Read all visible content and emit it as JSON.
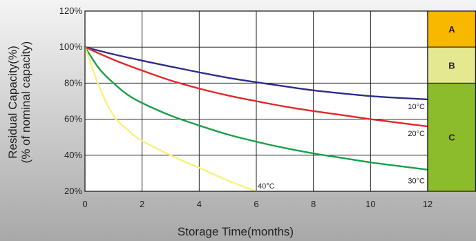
{
  "chart_data": {
    "type": "line",
    "title": "",
    "xlabel": "Storage Time(months)",
    "ylabel_lines": [
      "Residual Capacity(%)",
      "(% of nominal capacity)"
    ],
    "xlim": [
      0,
      12
    ],
    "ylim": [
      20,
      120
    ],
    "xticks": [
      0,
      2,
      4,
      6,
      8,
      10,
      12
    ],
    "yticks": [
      {
        "value": 20,
        "label": "20%"
      },
      {
        "value": 40,
        "label": "40%"
      },
      {
        "value": 60,
        "label": "60%"
      },
      {
        "value": 80,
        "label": "80%"
      },
      {
        "value": 100,
        "label": "100%"
      },
      {
        "value": 120,
        "label": "120%"
      }
    ],
    "grid": true,
    "zones": [
      {
        "label": "A",
        "from": 100,
        "to": 120,
        "color": "#f8b800"
      },
      {
        "label": "B",
        "from": 80,
        "to": 100,
        "color": "#e4e890"
      },
      {
        "label": "C",
        "from": 20,
        "to": 80,
        "color": "#8cbc2c"
      }
    ],
    "series": [
      {
        "name": "10°C",
        "color": "#2c2c8c",
        "x": [
          0,
          1,
          2,
          3,
          4,
          5,
          6,
          7,
          8,
          9,
          10,
          11,
          12
        ],
        "y": [
          100,
          96,
          92.5,
          89.2,
          86,
          83,
          80.5,
          78.2,
          76,
          74.3,
          72.8,
          71.8,
          71
        ]
      },
      {
        "name": "20°C",
        "color": "#e02828",
        "x": [
          0,
          1,
          2,
          3,
          4,
          5,
          6,
          7,
          8,
          9,
          10,
          11,
          12
        ],
        "y": [
          100,
          93,
          87,
          81.5,
          77,
          73.2,
          70,
          67,
          64.5,
          62.3,
          60,
          58,
          56
        ]
      },
      {
        "name": "30°C",
        "color": "#18a048",
        "x": [
          0,
          0.5,
          1,
          1.5,
          2,
          3,
          4,
          5,
          6,
          7,
          8,
          9,
          10,
          11,
          12
        ],
        "y": [
          100,
          88,
          80,
          73.5,
          69,
          62,
          56.5,
          51.5,
          47.5,
          44,
          41,
          38.5,
          36,
          34,
          32
        ]
      },
      {
        "name": "40°C",
        "color": "#f8f080",
        "x": [
          0,
          0.5,
          1,
          1.5,
          2,
          3,
          4,
          5,
          6
        ],
        "y": [
          100,
          78,
          62,
          54,
          48,
          40,
          33,
          26,
          20
        ]
      }
    ]
  }
}
